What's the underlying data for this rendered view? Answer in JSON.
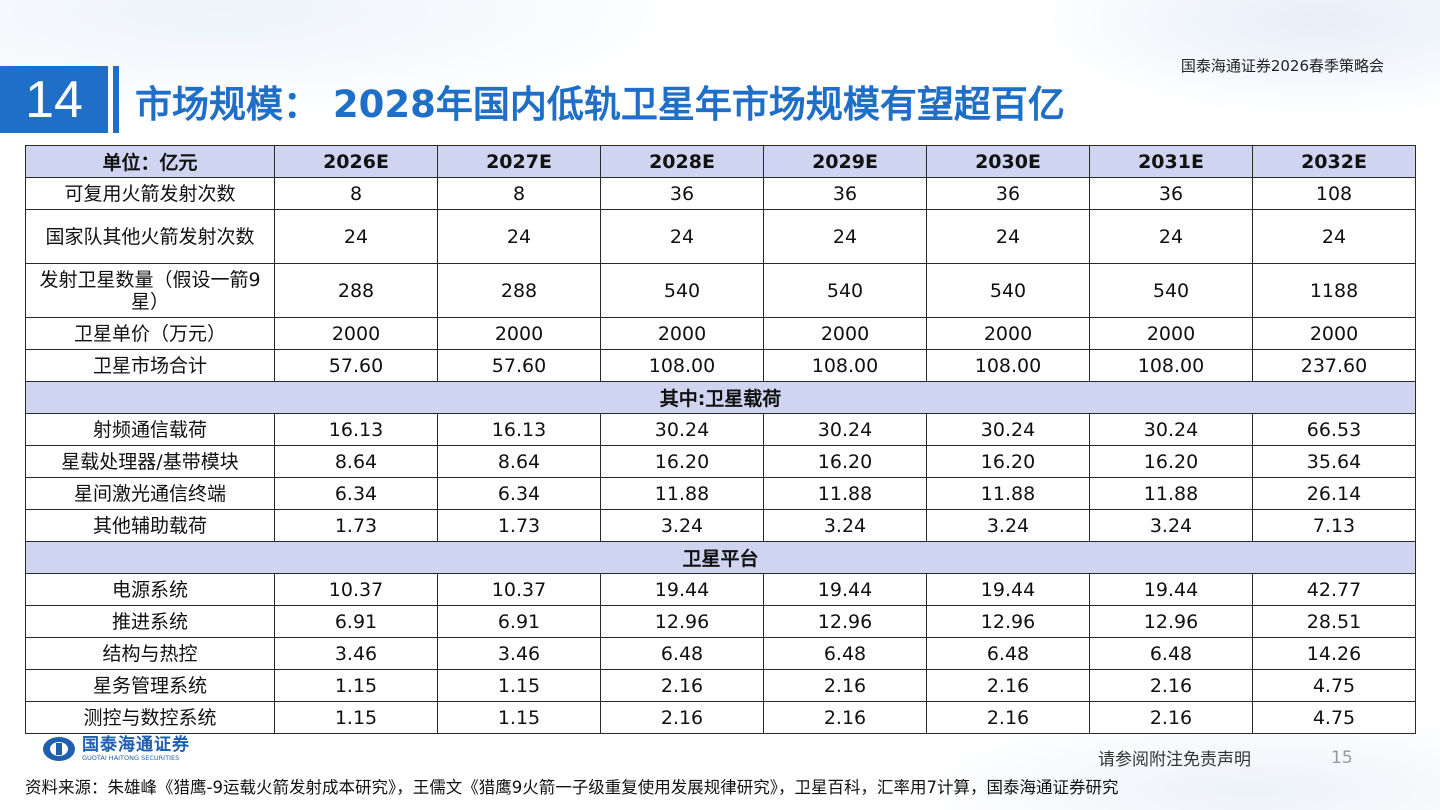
{
  "header": {
    "org": "国泰海通证券2026春季策略会",
    "number": "14",
    "title": "市场规模： 2028年国内低轨卫星年市场规模有望超百亿"
  },
  "table": {
    "columns": [
      "单位：亿元",
      "2026E",
      "2027E",
      "2028E",
      "2029E",
      "2030E",
      "2031E",
      "2032E"
    ],
    "rows_top": [
      {
        "label": "可复用火箭发射次数",
        "values": [
          "8",
          "8",
          "36",
          "36",
          "36",
          "36",
          "108"
        ]
      },
      {
        "label": "国家队其他火箭发射次数",
        "values": [
          "24",
          "24",
          "24",
          "24",
          "24",
          "24",
          "24"
        ]
      },
      {
        "label": "发射卫星数量（假设一箭9星）",
        "values": [
          "288",
          "288",
          "540",
          "540",
          "540",
          "540",
          "1188"
        ]
      },
      {
        "label": "卫星单价（万元）",
        "values": [
          "2000",
          "2000",
          "2000",
          "2000",
          "2000",
          "2000",
          "2000"
        ]
      },
      {
        "label": "卫星市场合计",
        "values": [
          "57.60",
          "57.60",
          "108.00",
          "108.00",
          "108.00",
          "108.00",
          "237.60"
        ]
      }
    ],
    "section1": "其中:卫星载荷",
    "rows_payload": [
      {
        "label": "射频通信载荷",
        "values": [
          "16.13",
          "16.13",
          "30.24",
          "30.24",
          "30.24",
          "30.24",
          "66.53"
        ]
      },
      {
        "label": "星载处理器/基带模块",
        "values": [
          "8.64",
          "8.64",
          "16.20",
          "16.20",
          "16.20",
          "16.20",
          "35.64"
        ]
      },
      {
        "label": "星间激光通信终端",
        "values": [
          "6.34",
          "6.34",
          "11.88",
          "11.88",
          "11.88",
          "11.88",
          "26.14"
        ]
      },
      {
        "label": "其他辅助载荷",
        "values": [
          "1.73",
          "1.73",
          "3.24",
          "3.24",
          "3.24",
          "3.24",
          "7.13"
        ]
      }
    ],
    "section2": "卫星平台",
    "rows_platform": [
      {
        "label": "电源系统",
        "values": [
          "10.37",
          "10.37",
          "19.44",
          "19.44",
          "19.44",
          "19.44",
          "42.77"
        ]
      },
      {
        "label": "推进系统",
        "values": [
          "6.91",
          "6.91",
          "12.96",
          "12.96",
          "12.96",
          "12.96",
          "28.51"
        ]
      },
      {
        "label": "结构与热控",
        "values": [
          "3.46",
          "3.46",
          "6.48",
          "6.48",
          "6.48",
          "6.48",
          "14.26"
        ]
      },
      {
        "label": "星务管理系统",
        "values": [
          "1.15",
          "1.15",
          "2.16",
          "2.16",
          "2.16",
          "2.16",
          "4.75"
        ]
      },
      {
        "label": "测控与数控系统",
        "values": [
          "1.15",
          "1.15",
          "2.16",
          "2.16",
          "2.16",
          "2.16",
          "4.75"
        ]
      }
    ]
  },
  "footer": {
    "logo_cn": "国泰海通证券",
    "logo_en": "GUOTAI HAITONG SECURITIES",
    "disclaimer": "请参阅附注免责声明",
    "page": "15",
    "source": "资料来源：朱雄峰《猎鹰-9运载火箭发射成本研究》，王儒文《猎鹰9火箭一子级重复使用发展规律研究》，卫星百科，汇率用7计算，国泰海通证券研究"
  },
  "colors": {
    "brand_blue": "#1f6fc9",
    "header_fill": "#cfd5f0"
  },
  "icons": {
    "logo": "guotai-haitong-logo-icon"
  }
}
